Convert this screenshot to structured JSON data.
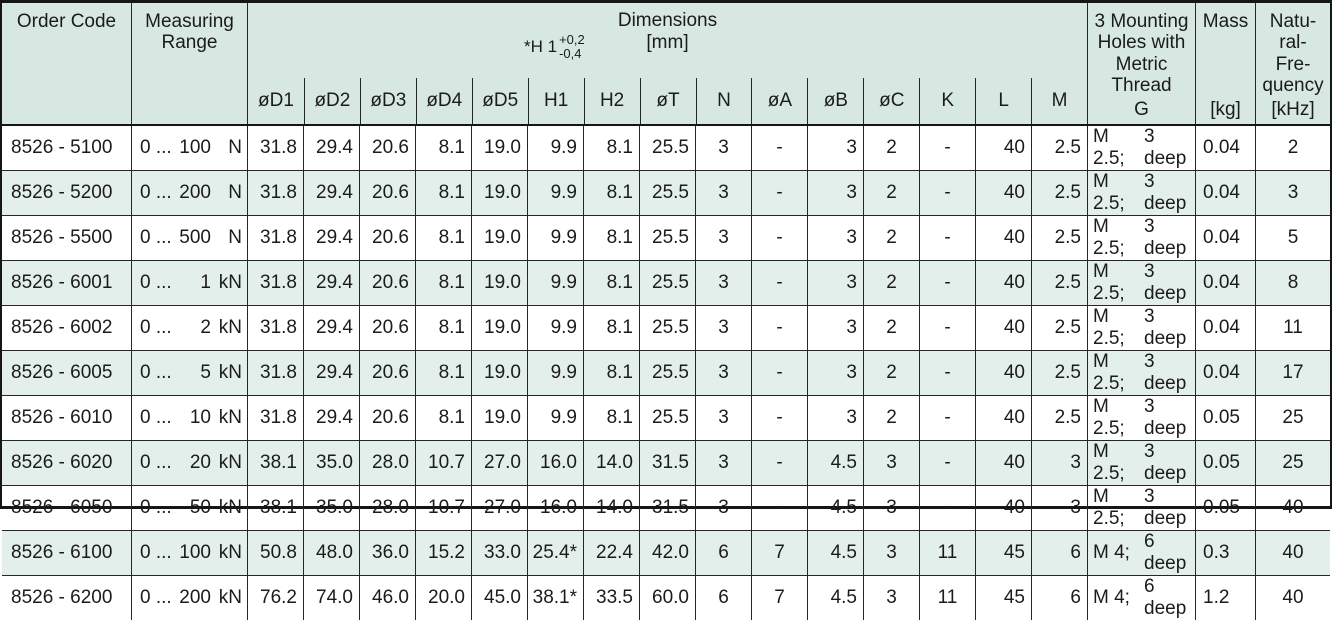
{
  "header": {
    "order_code": "Order Code",
    "measuring_range": "Measuring Range",
    "dimensions_title": "Dimensions",
    "dimensions_unit": "[mm]",
    "tolerance_prefix": "*H 1",
    "tolerance_plus": "+0,2",
    "tolerance_minus": "-0,4",
    "dim_columns": [
      "øD1",
      "øD2",
      "øD3",
      "øD4",
      "øD5",
      "H1",
      "H2",
      "øT",
      "N",
      "øA",
      "øB",
      "øC",
      "K",
      "L",
      "M"
    ],
    "mounting": {
      "lines": [
        "3 Mounting",
        "Holes with",
        "Metric",
        "Thread"
      ],
      "symbol": "G"
    },
    "mass": {
      "label": "Mass",
      "unit": "[kg]"
    },
    "frequency": {
      "lines": [
        "Natu-",
        "ral-",
        "Fre-",
        "quency"
      ],
      "unit": "[kHz]"
    }
  },
  "colors": {
    "header_bg": "#d7e8e3",
    "row_alt_bg": "#e2efea",
    "border": "#262626"
  },
  "rows": [
    {
      "code": "8526 - 5100",
      "rp": "0 ...",
      "rv": "100",
      "ru": "N",
      "d1": "31.8",
      "d2": "29.4",
      "d3": "20.6",
      "d4": "8.1",
      "d5": "19.0",
      "h1": "9.9",
      "h2": "8.1",
      "t": "25.5",
      "n": "3",
      "a": "-",
      "b": "3",
      "c": "2",
      "k": "-",
      "l": "40",
      "m": "2.5",
      "g1": "M 2.5;",
      "g2": "3 deep",
      "mass": "0.04",
      "freq": "2"
    },
    {
      "code": "8526 - 5200",
      "rp": "0 ...",
      "rv": "200",
      "ru": "N",
      "d1": "31.8",
      "d2": "29.4",
      "d3": "20.6",
      "d4": "8.1",
      "d5": "19.0",
      "h1": "9.9",
      "h2": "8.1",
      "t": "25.5",
      "n": "3",
      "a": "-",
      "b": "3",
      "c": "2",
      "k": "-",
      "l": "40",
      "m": "2.5",
      "g1": "M 2.5;",
      "g2": "3 deep",
      "mass": "0.04",
      "freq": "3"
    },
    {
      "code": "8526 - 5500",
      "rp": "0 ...",
      "rv": "500",
      "ru": "N",
      "d1": "31.8",
      "d2": "29.4",
      "d3": "20.6",
      "d4": "8.1",
      "d5": "19.0",
      "h1": "9.9",
      "h2": "8.1",
      "t": "25.5",
      "n": "3",
      "a": "-",
      "b": "3",
      "c": "2",
      "k": "-",
      "l": "40",
      "m": "2.5",
      "g1": "M 2.5;",
      "g2": "3 deep",
      "mass": "0.04",
      "freq": "5"
    },
    {
      "code": "8526 - 6001",
      "rp": "0 ...",
      "rv": "1",
      "ru": "kN",
      "d1": "31.8",
      "d2": "29.4",
      "d3": "20.6",
      "d4": "8.1",
      "d5": "19.0",
      "h1": "9.9",
      "h2": "8.1",
      "t": "25.5",
      "n": "3",
      "a": "-",
      "b": "3",
      "c": "2",
      "k": "-",
      "l": "40",
      "m": "2.5",
      "g1": "M 2.5;",
      "g2": "3 deep",
      "mass": "0.04",
      "freq": "8"
    },
    {
      "code": "8526 - 6002",
      "rp": "0 ...",
      "rv": "2",
      "ru": "kN",
      "d1": "31.8",
      "d2": "29.4",
      "d3": "20.6",
      "d4": "8.1",
      "d5": "19.0",
      "h1": "9.9",
      "h2": "8.1",
      "t": "25.5",
      "n": "3",
      "a": "-",
      "b": "3",
      "c": "2",
      "k": "-",
      "l": "40",
      "m": "2.5",
      "g1": "M 2.5;",
      "g2": "3 deep",
      "mass": "0.04",
      "freq": "11"
    },
    {
      "code": "8526 - 6005",
      "rp": "0 ...",
      "rv": "5",
      "ru": "kN",
      "d1": "31.8",
      "d2": "29.4",
      "d3": "20.6",
      "d4": "8.1",
      "d5": "19.0",
      "h1": "9.9",
      "h2": "8.1",
      "t": "25.5",
      "n": "3",
      "a": "-",
      "b": "3",
      "c": "2",
      "k": "-",
      "l": "40",
      "m": "2.5",
      "g1": "M 2.5;",
      "g2": "3 deep",
      "mass": "0.04",
      "freq": "17"
    },
    {
      "code": "8526 - 6010",
      "rp": "0 ...",
      "rv": "10",
      "ru": "kN",
      "d1": "31.8",
      "d2": "29.4",
      "d3": "20.6",
      "d4": "8.1",
      "d5": "19.0",
      "h1": "9.9",
      "h2": "8.1",
      "t": "25.5",
      "n": "3",
      "a": "-",
      "b": "3",
      "c": "2",
      "k": "-",
      "l": "40",
      "m": "2.5",
      "g1": "M 2.5;",
      "g2": "3 deep",
      "mass": "0.05",
      "freq": "25"
    },
    {
      "code": "8526 - 6020",
      "rp": "0 ...",
      "rv": "20",
      "ru": "kN",
      "d1": "38.1",
      "d2": "35.0",
      "d3": "28.0",
      "d4": "10.7",
      "d5": "27.0",
      "h1": "16.0",
      "h2": "14.0",
      "t": "31.5",
      "n": "3",
      "a": "-",
      "b": "4.5",
      "c": "3",
      "k": "-",
      "l": "40",
      "m": "3",
      "g1": "M 2.5;",
      "g2": "3 deep",
      "mass": "0.05",
      "freq": "25"
    },
    {
      "code": "8526 - 6050",
      "rp": "0 ...",
      "rv": "50",
      "ru": "kN",
      "d1": "38.1",
      "d2": "35.0",
      "d3": "28.0",
      "d4": "10.7",
      "d5": "27.0",
      "h1": "16.0",
      "h2": "14.0",
      "t": "31.5",
      "n": "3",
      "a": "-",
      "b": "4.5",
      "c": "3",
      "k": "-",
      "l": "40",
      "m": "3",
      "g1": "M 2.5;",
      "g2": "3 deep",
      "mass": "0.05",
      "freq": "40"
    },
    {
      "code": "8526 - 6100",
      "rp": "0 ...",
      "rv": "100",
      "ru": "kN",
      "d1": "50.8",
      "d2": "48.0",
      "d3": "36.0",
      "d4": "15.2",
      "d5": "33.0",
      "h1": "25.4*",
      "h2": "22.4",
      "t": "42.0",
      "n": "6",
      "a": "7",
      "b": "4.5",
      "c": "3",
      "k": "11",
      "l": "45",
      "m": "6",
      "g1": "M 4;",
      "g2": "6 deep",
      "mass": "0.3",
      "freq": "40"
    },
    {
      "code": "8526 - 6200",
      "rp": "0 ...",
      "rv": "200",
      "ru": "kN",
      "d1": "76.2",
      "d2": "74.0",
      "d3": "46.0",
      "d4": "20.0",
      "d5": "45.0",
      "h1": "38.1*",
      "h2": "33.5",
      "t": "60.0",
      "n": "6",
      "a": "7",
      "b": "4.5",
      "c": "3",
      "k": "11",
      "l": "45",
      "m": "6",
      "g1": "M 4;",
      "g2": "6 deep",
      "mass": "1.2",
      "freq": "40"
    }
  ]
}
